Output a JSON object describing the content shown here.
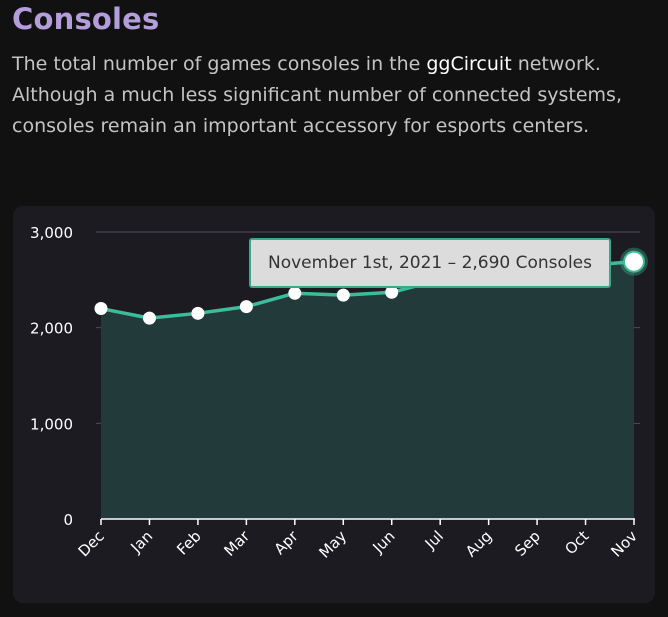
{
  "title": "Consoles",
  "description": {
    "before": "The total number of games consoles in the ",
    "highlight": "ggCircuit",
    "after": " network. Although a much less significant number of connected systems, consoles remain an important accessory for esports centers."
  },
  "colors": {
    "accent": "#b39ddb",
    "line": "#3dbd97",
    "area": "#233a3a",
    "card": "#1d1b22",
    "background": "#111111"
  },
  "tooltip": {
    "date": "November 1st, 2021",
    "separator": "–",
    "value": "2,690",
    "unit": "Consoles"
  },
  "chart_data": {
    "type": "area",
    "categories": [
      "Dec",
      "Jan",
      "Feb",
      "Mar",
      "Apr",
      "May",
      "Jun",
      "Jul",
      "Aug",
      "Sep",
      "Oct",
      "Nov"
    ],
    "series": [
      {
        "values": [
          2200,
          2100,
          2150,
          2220,
          2360,
          2340,
          2370,
          2500,
          2550,
          2600,
          2650,
          2690
        ]
      }
    ],
    "yticks": [
      "0",
      "1,000",
      "2,000",
      "3,000"
    ],
    "ytick_values": [
      0,
      1000,
      2000,
      3000
    ],
    "ylim": [
      0,
      3000
    ],
    "grid": true,
    "highlighted_index": 11
  }
}
